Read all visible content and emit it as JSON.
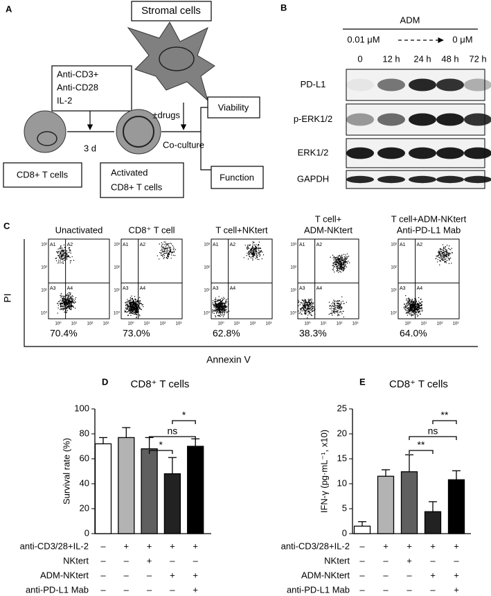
{
  "panel_a": {
    "label": "A",
    "stromal": "Stromal cells",
    "stimulus": [
      "Anti-CD3+",
      "Anti-CD28",
      "IL-2"
    ],
    "duration": "3 d",
    "drugs": "±drugs",
    "coculture": "Co-culture",
    "viability": "Viability",
    "function": "Function",
    "naive": "CD8+ T cells",
    "activated": [
      "Activated",
      "CD8+ T cells"
    ]
  },
  "panel_b": {
    "label": "B",
    "treatment": "ADM",
    "dose_start": "0.01 μM",
    "dose_end": "0 μM",
    "times": [
      "0",
      "12 h",
      "24 h",
      "48 h",
      "72 h"
    ],
    "proteins": [
      "PD-L1",
      "p-ERK1/2",
      "ERK1/2",
      "GAPDH"
    ]
  },
  "panel_c": {
    "label": "C",
    "y_label": "PI",
    "x_label": "Annexin V",
    "quadrants": [
      "A1",
      "A2",
      "A3",
      "A4"
    ],
    "log_ticks": [
      "10⁰",
      "10¹",
      "10²",
      "10³"
    ],
    "plots": [
      {
        "title": [
          "Unactivated"
        ],
        "percent": "70.4%"
      },
      {
        "title": [
          "CD8⁺ T cell"
        ],
        "percent": "73.0%"
      },
      {
        "title": [
          "T cell+NKtert"
        ],
        "percent": "62.8%"
      },
      {
        "title": [
          "T cell+",
          "ADM-NKtert"
        ],
        "percent": "38.3%"
      },
      {
        "title": [
          "T cell+ADM-NKtert",
          "Anti-PD-L1 Mab"
        ],
        "percent": "64.0%"
      }
    ]
  },
  "chart_data": [
    {
      "type": "bar",
      "label": "D",
      "title": "CD8⁺ T cells",
      "y_label": "Survival rate (%)",
      "categories": [
        null,
        null,
        null,
        null,
        null
      ],
      "values": [
        72,
        77,
        68,
        48,
        70
      ],
      "errors": [
        5,
        8,
        9,
        13,
        6
      ],
      "colors": [
        "#ffffff",
        "#b3b3b3",
        "#5f5f5f",
        "#222222",
        "#000000"
      ],
      "ylim": [
        0,
        100
      ],
      "yticks": [
        0,
        20,
        40,
        60,
        80,
        100
      ],
      "significance": [
        "*",
        "ns",
        "*"
      ],
      "conditions": [
        {
          "name": "anti-CD3/28+IL-2",
          "signs": [
            "–",
            "+",
            "+",
            "+",
            "+"
          ]
        },
        {
          "name": "NKtert",
          "signs": [
            "–",
            "–",
            "+",
            "–",
            "–"
          ]
        },
        {
          "name": "ADM-NKtert",
          "signs": [
            "–",
            "–",
            "–",
            "+",
            "+"
          ]
        },
        {
          "name": "anti-PD-L1 Mab",
          "signs": [
            "–",
            "–",
            "–",
            "–",
            "+"
          ]
        }
      ]
    },
    {
      "type": "bar",
      "label": "E",
      "title": "CD8⁺ T cells",
      "y_label": "IFN-γ (pg·mL⁻¹, x10)",
      "categories": [
        null,
        null,
        null,
        null,
        null
      ],
      "values": [
        1.5,
        11.5,
        12.4,
        4.4,
        10.8
      ],
      "errors": [
        0.9,
        1.3,
        3.4,
        2,
        1.8
      ],
      "colors": [
        "#ffffff",
        "#b3b3b3",
        "#5f5f5f",
        "#222222",
        "#000000"
      ],
      "ylim": [
        0,
        25
      ],
      "yticks": [
        0,
        5,
        10,
        15,
        20,
        25
      ],
      "significance": [
        "**",
        "ns",
        "**"
      ],
      "conditions": [
        {
          "name": "anti-CD3/28+IL-2",
          "signs": [
            "–",
            "+",
            "+",
            "+",
            "+"
          ]
        },
        {
          "name": "NKtert",
          "signs": [
            "–",
            "–",
            "+",
            "–",
            "–"
          ]
        },
        {
          "name": "ADM-NKtert",
          "signs": [
            "–",
            "–",
            "–",
            "+",
            "+"
          ]
        },
        {
          "name": "anti-PD-L1 Mab",
          "signs": [
            "–",
            "–",
            "–",
            "–",
            "+"
          ]
        }
      ]
    }
  ]
}
